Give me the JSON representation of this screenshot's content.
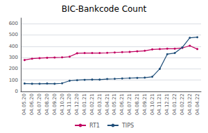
{
  "chart_data": {
    "type": "line",
    "title": "BIC-Bankcode Count",
    "categories": [
      "04.05.20",
      "04.06.20",
      "04.07.20",
      "04.08.20",
      "04.09.20",
      "04.10.20",
      "04.11.20",
      "04.12.20",
      "04.01.21",
      "04.02.21",
      "04.03.21",
      "04.04.21",
      "04.05.21",
      "04.06.21",
      "04.07.21",
      "04.08.21",
      "04.09.21",
      "04.10.21",
      "04.11.21",
      "04.12.21",
      "04.01.22",
      "04.02.22",
      "04.03.22",
      "04.04.22"
    ],
    "series": [
      {
        "name": "RT1",
        "color": "#c00060",
        "marker": "circle",
        "values": [
          278,
          290,
          295,
          298,
          300,
          302,
          308,
          338,
          340,
          340,
          340,
          342,
          345,
          348,
          350,
          355,
          360,
          372,
          375,
          378,
          378,
          385,
          405,
          375
        ]
      },
      {
        "name": "TIPS",
        "color": "#1f4e79",
        "marker": "circle",
        "values": [
          70,
          68,
          68,
          70,
          68,
          72,
          95,
          100,
          103,
          105,
          105,
          110,
          112,
          115,
          118,
          120,
          122,
          130,
          200,
          330,
          340,
          390,
          475,
          480
        ]
      }
    ],
    "ylim": [
      0,
      650
    ],
    "yticks": [
      0,
      100,
      200,
      300,
      400,
      500,
      600
    ],
    "grid": true,
    "legend": "bottom"
  }
}
